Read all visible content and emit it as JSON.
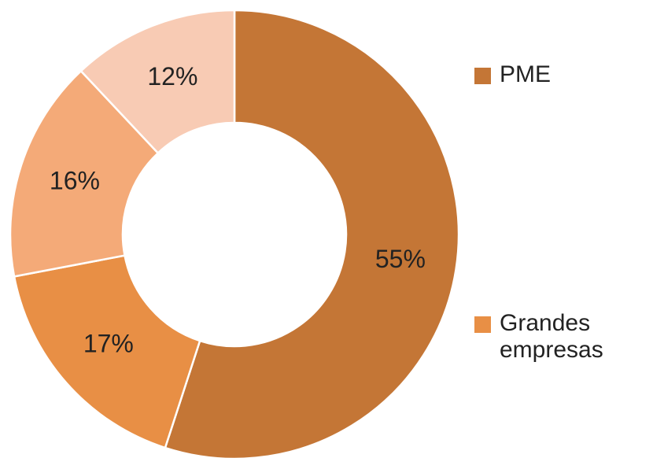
{
  "chart_data": {
    "type": "donut",
    "categories": [
      "PME",
      "Grandes empresas",
      null,
      null
    ],
    "values": [
      55,
      17,
      16,
      12
    ],
    "value_labels": [
      "55%",
      "17%",
      "16%",
      "12%"
    ],
    "colors": [
      "#c47636",
      "#e88f45",
      "#f4aa78",
      "#f8cbb4"
    ]
  }
}
